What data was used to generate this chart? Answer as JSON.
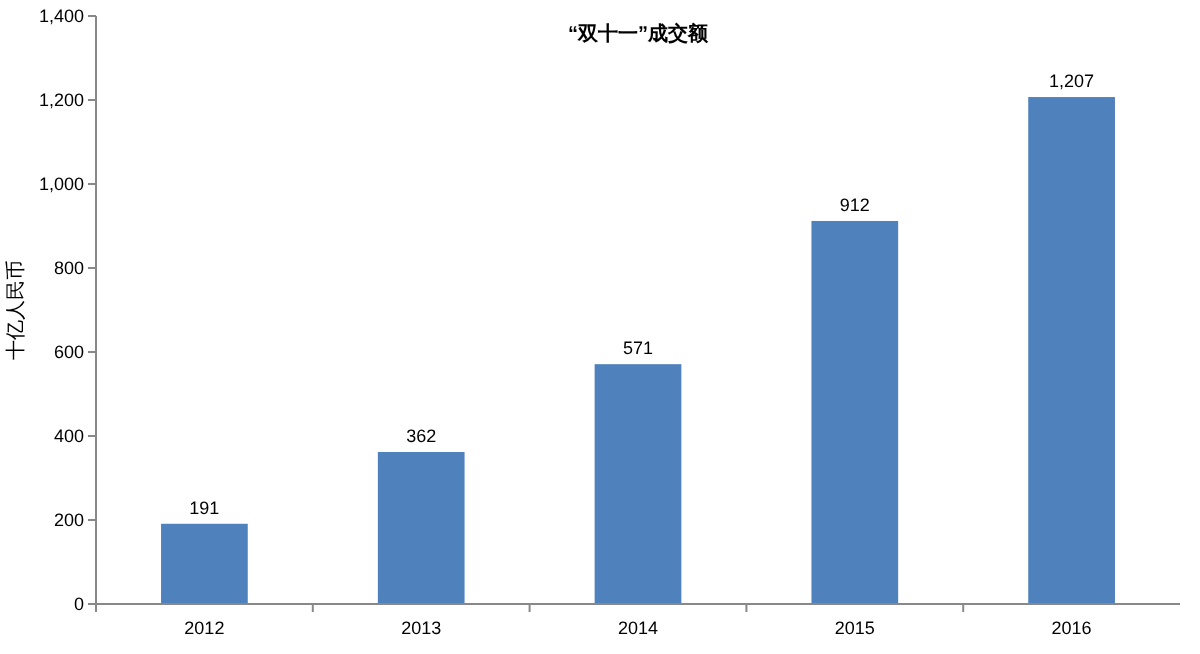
{
  "chart_data": {
    "type": "bar",
    "title": "“双十一”成交额",
    "ylabel": "十亿人民币",
    "categories": [
      "2012",
      "2013",
      "2014",
      "2015",
      "2016"
    ],
    "values": [
      191,
      362,
      571,
      912,
      1207
    ],
    "color": "#4f81bd",
    "value_labels": [
      "191",
      "362",
      "571",
      "912",
      "1,207"
    ],
    "ylim": [
      0,
      1400
    ],
    "yticks": [
      0,
      {
        "value": 200,
        "label": "200"
      },
      {
        "value": 400,
        "label": "400"
      },
      {
        "value": 600,
        "label": "600"
      },
      {
        "value": 800,
        "label": "800"
      },
      {
        "value": 1000,
        "label": "1,000"
      },
      {
        "value": 1200,
        "label": "1,200"
      },
      {
        "value": 1400,
        "label": "1,400"
      }
    ],
    "grid": false
  }
}
